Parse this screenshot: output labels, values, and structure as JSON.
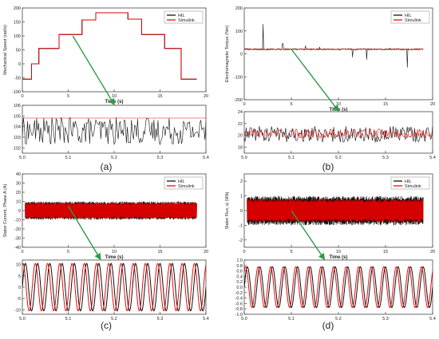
{
  "figure": {
    "panel_labels": [
      "(a)",
      "(b)",
      "(c)",
      "(d)"
    ]
  },
  "colors": {
    "hil": "#000000",
    "simulink": "#e00000",
    "arrow": "#2e9a46",
    "axis": "#444444",
    "text": "#222222"
  },
  "chart_data": [
    {
      "id": "a-top",
      "type": "line",
      "xlabel": "Time (s)",
      "ylabel": "Mechanical Speed (rad/s)",
      "xlim": [
        0,
        20
      ],
      "ylim": [
        -100,
        200
      ],
      "x_ticks": [
        "0",
        "5",
        "10",
        "15",
        "20"
      ],
      "y_ticks": [
        "-100",
        "-50",
        "0",
        "50",
        "100",
        "150",
        "200"
      ],
      "legend": [
        "HIL",
        "Simulink"
      ],
      "legend_position": "top-right",
      "series": [
        {
          "name": "HIL",
          "x": [
            0,
            1,
            1,
            1.8,
            1.8,
            4,
            4,
            6.5,
            6.5,
            8,
            8,
            11.5,
            11.5,
            13,
            13,
            15.5,
            15.5,
            17.3,
            17.3,
            19
          ],
          "y": [
            -55,
            -55,
            0,
            0,
            55,
            55,
            105,
            105,
            157,
            157,
            183,
            183,
            160,
            160,
            105,
            105,
            55,
            55,
            -55,
            -55
          ]
        },
        {
          "name": "Simulink",
          "x": [
            0,
            1,
            1,
            1.8,
            1.8,
            4,
            4,
            6.5,
            6.5,
            8,
            8,
            11.5,
            11.5,
            13,
            13,
            15.5,
            15.5,
            17.3,
            17.3,
            19
          ],
          "y": [
            -55,
            -55,
            0,
            0,
            55,
            55,
            105,
            105,
            157,
            157,
            183,
            183,
            160,
            160,
            105,
            105,
            55,
            55,
            -55,
            -55
          ]
        }
      ]
    },
    {
      "id": "a-zoom",
      "type": "line",
      "xlabel": "",
      "ylabel": "",
      "xlim": [
        5.0,
        5.4
      ],
      "ylim": [
        101.5,
        106
      ],
      "x_ticks": [
        "5.0",
        "5.1",
        "5.2",
        "5.3",
        "5.4"
      ],
      "y_ticks": [
        "102",
        "103",
        "104",
        "105",
        "106"
      ],
      "series": [
        {
          "name": "HIL",
          "center": 103.6,
          "amplitude": 1.3,
          "points": 180
        },
        {
          "name": "Simulink",
          "constant": 104.8
        }
      ]
    },
    {
      "id": "b-top",
      "type": "line",
      "xlabel": "Time (s)",
      "ylabel": "Electromagnetic Torque (Nm)",
      "xlim": [
        0,
        20
      ],
      "ylim": [
        -200,
        200
      ],
      "x_ticks": [
        "0",
        "5",
        "10",
        "15",
        "20"
      ],
      "y_ticks": [
        "-200",
        "-100",
        "0",
        "100",
        "200"
      ],
      "legend": [
        "HIL",
        "Simulink"
      ],
      "legend_position": "top-right",
      "series": [
        {
          "name": "HIL",
          "baseline": 20,
          "spikes": [
            [
              2.0,
              130
            ],
            [
              4.1,
              45
            ],
            [
              6.5,
              35
            ],
            [
              8.0,
              30
            ],
            [
              11.5,
              -15
            ],
            [
              13.0,
              -25
            ],
            [
              15.5,
              25
            ],
            [
              17.3,
              -60
            ]
          ]
        },
        {
          "name": "Simulink",
          "baseline": 20
        }
      ]
    },
    {
      "id": "b-zoom",
      "type": "line",
      "xlabel": "",
      "ylabel": "",
      "xlim": [
        5.0,
        5.4
      ],
      "ylim": [
        17,
        24
      ],
      "x_ticks": [
        "5.0",
        "5.1",
        "5.2",
        "5.3",
        "5.4"
      ],
      "y_ticks": [
        "18",
        "20",
        "22",
        "24"
      ],
      "series": [
        {
          "name": "HIL",
          "center": 20.2,
          "amplitude": 1.4,
          "points": 200
        },
        {
          "name": "Simulink",
          "center": 20.3,
          "amplitude": 0.8,
          "points": 200
        }
      ]
    },
    {
      "id": "c-top",
      "type": "line",
      "xlabel": "Time (s)",
      "ylabel": "Stator Current, Phase A (A)",
      "xlim": [
        0,
        20
      ],
      "ylim": [
        -40,
        40
      ],
      "x_ticks": [
        "0",
        "5",
        "10",
        "15",
        "20"
      ],
      "y_ticks": [
        "-40",
        "-30",
        "-20",
        "-10",
        "0",
        "10",
        "20",
        "30",
        "40"
      ],
      "legend": [
        "HIL",
        "Simulink"
      ],
      "legend_position": "top-right",
      "series": [
        {
          "name": "HIL",
          "envelope": 10
        },
        {
          "name": "Simulink",
          "envelope": 9
        }
      ]
    },
    {
      "id": "c-zoom",
      "type": "line",
      "xlabel": "",
      "ylabel": "",
      "xlim": [
        5.0,
        5.4
      ],
      "ylim": [
        -12,
        12
      ],
      "x_ticks": [
        "5.0",
        "5.1",
        "5.2",
        "5.3",
        "5.4"
      ],
      "y_ticks": [
        "-10",
        "-5",
        "0",
        "5",
        "10"
      ],
      "series": [
        {
          "name": "HIL",
          "amplitude": 10.5,
          "cycles": 15,
          "phase": 0
        },
        {
          "name": "Simulink",
          "amplitude": 10.5,
          "cycles": 15,
          "phase": 1.2
        }
      ]
    },
    {
      "id": "d-top",
      "type": "line",
      "xlabel": "Time (s)",
      "ylabel": "Stator Flux, ψ (Wb)",
      "xlim": [
        0,
        20
      ],
      "ylim": [
        -2.5,
        2.5
      ],
      "x_ticks": [
        "0",
        "5",
        "10",
        "15",
        "20"
      ],
      "y_ticks": [
        "-2",
        "-1",
        "0",
        "1",
        "2"
      ],
      "legend": [
        "HIL",
        "Simulink"
      ],
      "legend_position": "top-right",
      "series": [
        {
          "name": "HIL",
          "envelope": 1.0
        },
        {
          "name": "Simulink",
          "envelope": 0.8
        }
      ]
    },
    {
      "id": "d-zoom",
      "type": "line",
      "xlabel": "",
      "ylabel": "",
      "xlim": [
        5.0,
        5.4
      ],
      "ylim": [
        -1.0,
        1.0
      ],
      "x_ticks": [
        "5.0",
        "5.1",
        "5.2",
        "5.3",
        "5.4"
      ],
      "y_ticks": [
        "-1.0",
        "-0.8",
        "-0.6",
        "-0.4",
        "-0.2",
        "0.0",
        "0.2",
        "0.4",
        "0.6",
        "0.8",
        "1.0"
      ],
      "series": [
        {
          "name": "HIL",
          "amplitude": 0.75,
          "cycles": 15,
          "phase": 0
        },
        {
          "name": "Simulink",
          "amplitude": 0.75,
          "cycles": 15,
          "phase": 0.9
        }
      ]
    }
  ]
}
